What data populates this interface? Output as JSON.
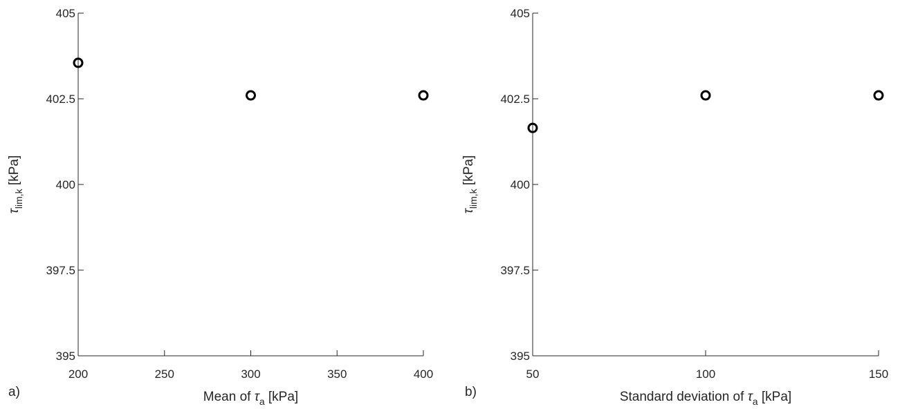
{
  "chart_data": [
    {
      "type": "scatter",
      "panel_label": "a)",
      "xlabel": {
        "prefix": "Mean of ",
        "symbol": "τ",
        "sub": "a",
        "suffix": " [kPa]"
      },
      "ylabel": {
        "symbol": "τ",
        "sub": "lim,k",
        "suffix": " [kPa]"
      },
      "xlim": [
        200,
        400
      ],
      "ylim": [
        395,
        405
      ],
      "xticks": [
        200,
        250,
        300,
        350,
        400
      ],
      "xtick_labels": [
        "200",
        "250",
        "300",
        "350",
        "400"
      ],
      "yticks": [
        395,
        397.5,
        400,
        402.5,
        405
      ],
      "ytick_labels": [
        "395",
        "397.5",
        "400",
        "402.5",
        "405"
      ],
      "grid": false,
      "marker": "open-circle",
      "marker_color": "#000000",
      "points": [
        {
          "x": 200,
          "y": 403.55
        },
        {
          "x": 300,
          "y": 402.6
        },
        {
          "x": 400,
          "y": 402.6
        }
      ]
    },
    {
      "type": "scatter",
      "panel_label": "b)",
      "xlabel": {
        "prefix": "Standard deviation of ",
        "symbol": "τ",
        "sub": "a",
        "suffix": " [kPa]"
      },
      "ylabel": {
        "symbol": "τ",
        "sub": "lim,k",
        "suffix": " [kPa]"
      },
      "xlim": [
        50,
        150
      ],
      "ylim": [
        395,
        405
      ],
      "xticks": [
        50,
        100,
        150
      ],
      "xtick_labels": [
        "50",
        "100",
        "150"
      ],
      "yticks": [
        395,
        397.5,
        400,
        402.5,
        405
      ],
      "ytick_labels": [
        "395",
        "397.5",
        "400",
        "402.5",
        "405"
      ],
      "grid": false,
      "marker": "open-circle",
      "marker_color": "#000000",
      "points": [
        {
          "x": 50,
          "y": 401.65
        },
        {
          "x": 100,
          "y": 402.6
        },
        {
          "x": 150,
          "y": 402.6
        }
      ]
    }
  ]
}
